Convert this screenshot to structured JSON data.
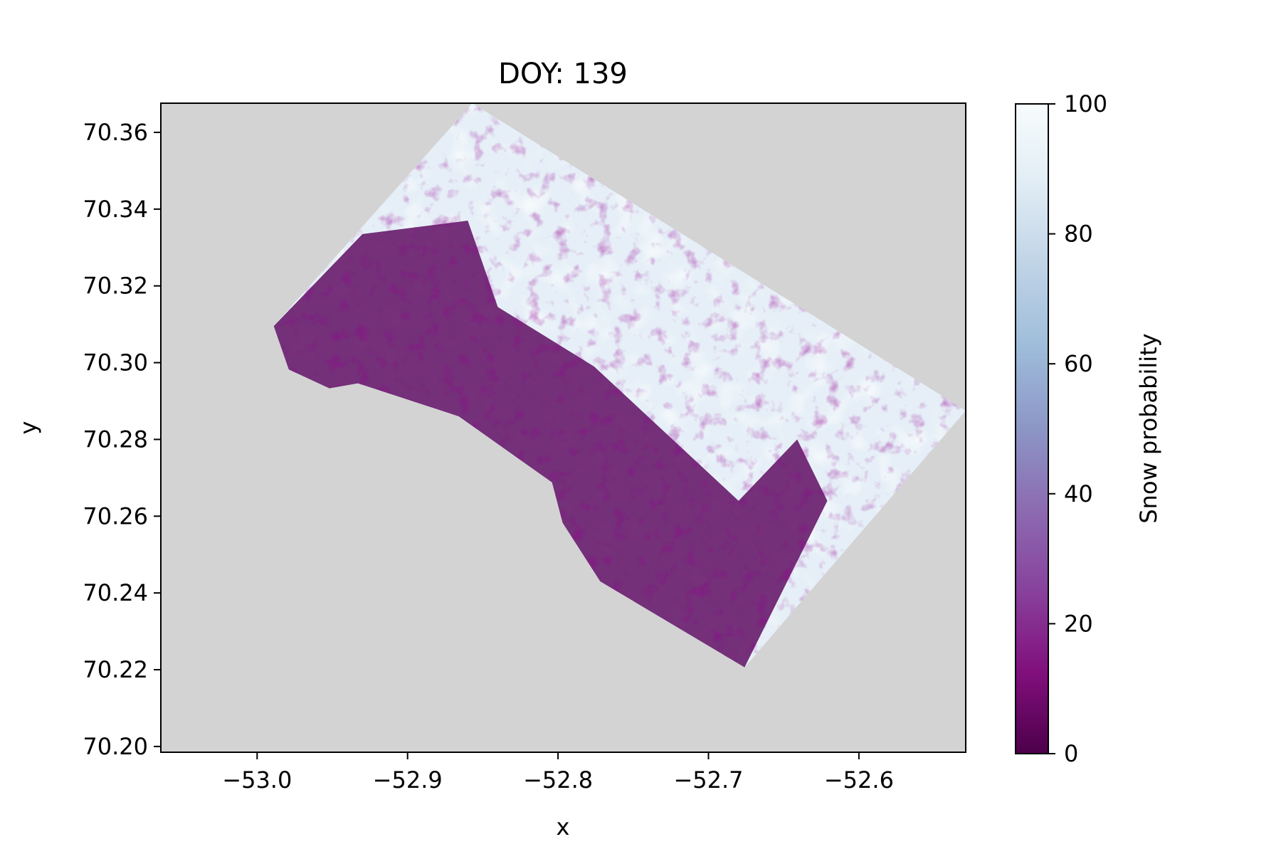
{
  "chart_data": {
    "type": "heatmap",
    "title": "DOY: 139",
    "xlabel": "x",
    "ylabel": "y",
    "xlim": [
      -53.064,
      -52.529
    ],
    "ylim": [
      70.1985,
      70.3676
    ],
    "x_ticks": [
      {
        "value": -53.0,
        "label": "−53.0"
      },
      {
        "value": -52.9,
        "label": "−52.9"
      },
      {
        "value": -52.8,
        "label": "−52.8"
      },
      {
        "value": -52.7,
        "label": "−52.7"
      },
      {
        "value": -52.6,
        "label": "−52.6"
      }
    ],
    "y_ticks": [
      {
        "value": 70.2,
        "label": "70.20"
      },
      {
        "value": 70.22,
        "label": "70.22"
      },
      {
        "value": 70.24,
        "label": "70.24"
      },
      {
        "value": 70.26,
        "label": "70.26"
      },
      {
        "value": 70.28,
        "label": "70.28"
      },
      {
        "value": 70.3,
        "label": "70.30"
      },
      {
        "value": 70.32,
        "label": "70.32"
      },
      {
        "value": 70.34,
        "label": "70.34"
      },
      {
        "value": 70.36,
        "label": "70.36"
      }
    ],
    "background_color": "#d3d3d3",
    "colormap": "BuPu_r",
    "colorbar": {
      "label": "Snow probability",
      "range": [
        0,
        100
      ],
      "ticks": [
        {
          "value": 0,
          "label": "0"
        },
        {
          "value": 20,
          "label": "20"
        },
        {
          "value": 40,
          "label": "40"
        },
        {
          "value": 60,
          "label": "60"
        },
        {
          "value": 80,
          "label": "80"
        },
        {
          "value": 100,
          "label": "100"
        }
      ],
      "stops": [
        "#4d004b",
        "#810f7c",
        "#88419d",
        "#8c6bb1",
        "#8c96c6",
        "#9ebcda",
        "#bfd3e6",
        "#e0ecf4",
        "#f7fcfd"
      ]
    },
    "data_extent": {
      "polygon": [
        [
          -52.857,
          70.3676
        ],
        [
          -52.529,
          70.2875
        ],
        [
          -52.676,
          70.2206
        ],
        [
          -52.772,
          70.243
        ],
        [
          -52.797,
          70.2583
        ],
        [
          -52.804,
          70.2688
        ],
        [
          -52.866,
          70.286
        ],
        [
          -52.933,
          70.2946
        ],
        [
          -52.952,
          70.2933
        ],
        [
          -52.979,
          70.2982
        ],
        [
          -52.989,
          70.3095
        ]
      ],
      "low_snow_region": [
        [
          -52.989,
          70.3095
        ],
        [
          -52.93,
          70.3335
        ],
        [
          -52.86,
          70.337
        ],
        [
          -52.84,
          70.3145
        ],
        [
          -52.776,
          70.299
        ],
        [
          -52.68,
          70.264
        ],
        [
          -52.641,
          70.28
        ],
        [
          -52.621,
          70.264
        ],
        [
          -52.676,
          70.2206
        ],
        [
          -52.772,
          70.243
        ],
        [
          -52.797,
          70.2583
        ],
        [
          -52.804,
          70.2688
        ],
        [
          -52.866,
          70.286
        ],
        [
          -52.933,
          70.2946
        ],
        [
          -52.952,
          70.2933
        ],
        [
          -52.979,
          70.2982
        ]
      ]
    }
  }
}
